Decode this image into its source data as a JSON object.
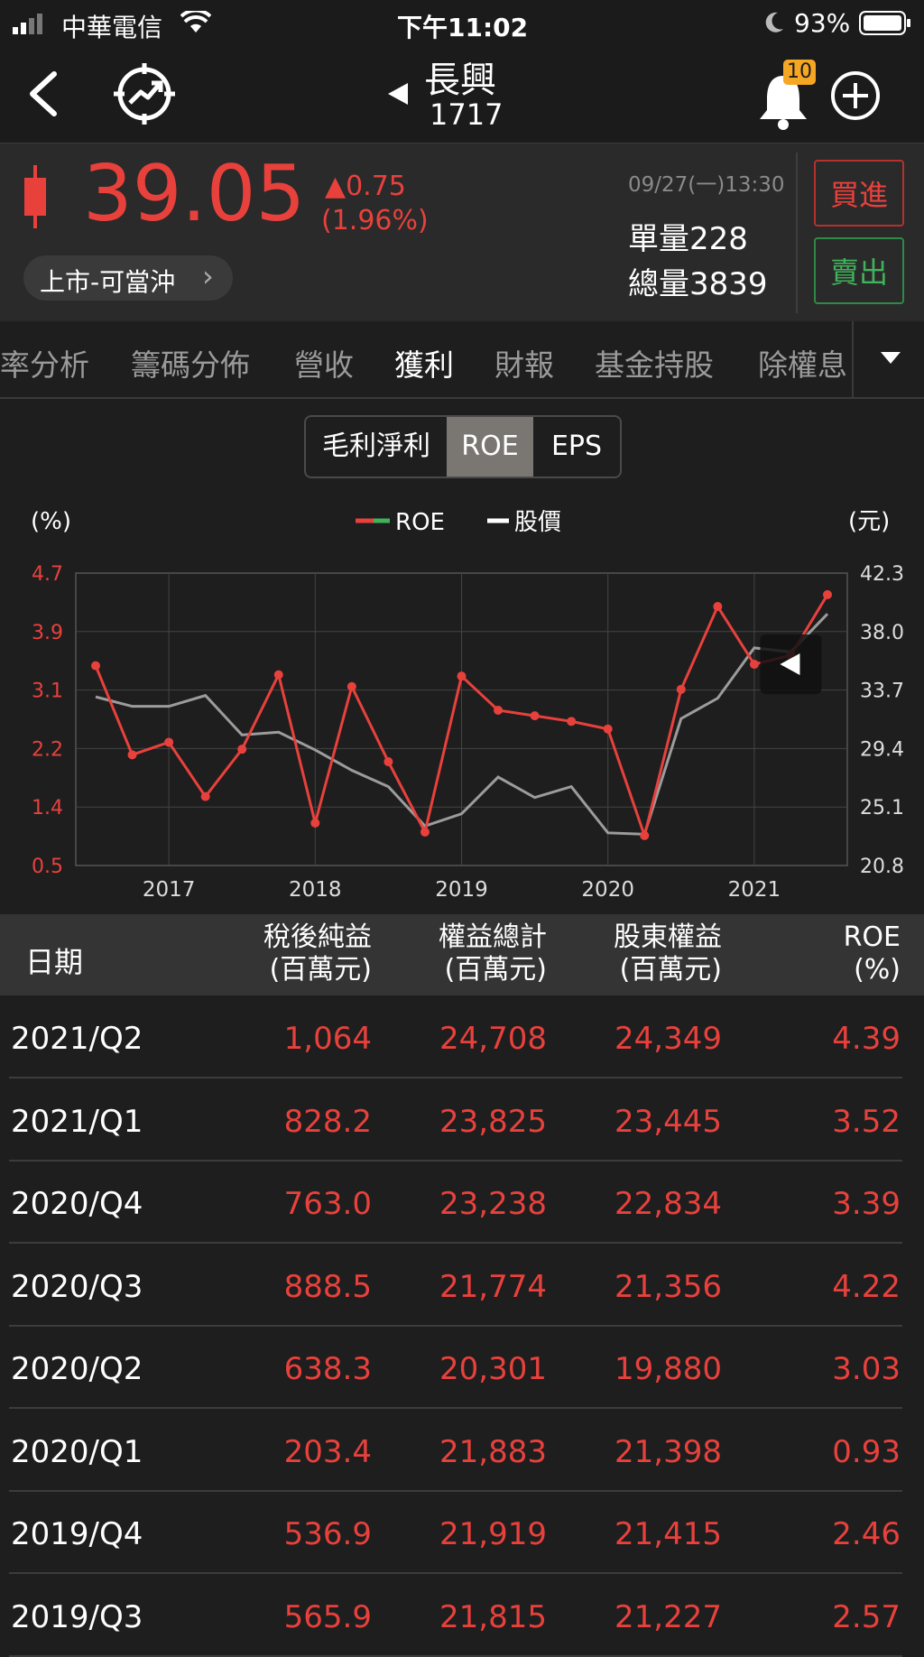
{
  "status": {
    "carrier": "中華電信",
    "time": "下午11:02",
    "battery": "93%"
  },
  "nav": {
    "title": "長興",
    "code": "1717",
    "badge": "10",
    "icons": [
      "back-icon",
      "trend-icon",
      "prev-icon",
      "bell-icon",
      "add-icon"
    ]
  },
  "quote": {
    "price": "39.05",
    "change": "▲0.75",
    "change_pct": "(1.96%)",
    "datetime": "09/27(一)13:30",
    "unit_vol": "單量228",
    "total_vol": "總量3839",
    "market": "上市-可當沖",
    "buy": "買進",
    "sell": "賣出"
  },
  "tabs": [
    "率分析",
    "籌碼分佈",
    "營收",
    "獲利",
    "財報",
    "基金持股",
    "除權息"
  ],
  "segments": [
    "毛利淨利",
    "ROE",
    "EPS"
  ],
  "colors": {
    "accent_red": "#e8413c",
    "accent_green": "#3fb35a",
    "price_line": "#9c9c9c"
  },
  "chart_data": {
    "type": "line",
    "legend": [
      "ROE",
      "股價"
    ],
    "ylabel_left": "(%)",
    "ylabel_right": "(元)",
    "yticks_left": [
      "4.7",
      "3.9",
      "3.1",
      "2.2",
      "1.4",
      "0.5"
    ],
    "yticks_right": [
      "42.3",
      "38.0",
      "33.7",
      "29.4",
      "25.1",
      "20.8"
    ],
    "ylim_left": [
      0.5,
      4.7
    ],
    "ylim_right": [
      20.8,
      42.3
    ],
    "x_ticks": [
      {
        "label": "2017",
        "pos": 2.0
      },
      {
        "label": "2018",
        "pos": 6.0
      },
      {
        "label": "2019",
        "pos": 10.0
      },
      {
        "label": "2020",
        "pos": 14.0
      },
      {
        "label": "2021",
        "pos": 18.0
      }
    ],
    "x": [
      "2016/Q2",
      "2016/Q3",
      "2016/Q4",
      "2017/Q1",
      "2017/Q2",
      "2017/Q3",
      "2017/Q4",
      "2018/Q1",
      "2018/Q2",
      "2018/Q3",
      "2018/Q4",
      "2019/Q1",
      "2019/Q2",
      "2019/Q3",
      "2019/Q4",
      "2020/Q1",
      "2020/Q2",
      "2020/Q3",
      "2020/Q4",
      "2021/Q1",
      "2021/Q2"
    ],
    "series": [
      {
        "name": "ROE",
        "axis": "left",
        "values": [
          3.37,
          2.09,
          2.27,
          1.49,
          2.17,
          3.24,
          1.11,
          3.07,
          1.99,
          0.98,
          3.22,
          2.73,
          2.65,
          2.57,
          2.46,
          0.93,
          3.03,
          4.22,
          3.39,
          3.52,
          4.39
        ]
      },
      {
        "name": "股價",
        "axis": "right",
        "values": [
          33.2,
          32.5,
          32.5,
          33.3,
          30.4,
          30.6,
          29.3,
          27.8,
          26.6,
          23.7,
          24.6,
          27.3,
          25.8,
          26.6,
          23.2,
          23.1,
          31.6,
          33.1,
          36.8,
          36.5,
          39.3
        ]
      }
    ]
  },
  "table": {
    "headers": [
      {
        "l1": "日期",
        "l2": ""
      },
      {
        "l1": "稅後純益",
        "l2": "(百萬元)"
      },
      {
        "l1": "權益總計",
        "l2": "(百萬元)"
      },
      {
        "l1": "股東權益",
        "l2": "(百萬元)"
      },
      {
        "l1": "ROE",
        "l2": "(%)"
      }
    ],
    "rows": [
      [
        "2021/Q2",
        "1,064",
        "24,708",
        "24,349",
        "4.39"
      ],
      [
        "2021/Q1",
        "828.2",
        "23,825",
        "23,445",
        "3.52"
      ],
      [
        "2020/Q4",
        "763.0",
        "23,238",
        "22,834",
        "3.39"
      ],
      [
        "2020/Q3",
        "888.5",
        "21,774",
        "21,356",
        "4.22"
      ],
      [
        "2020/Q2",
        "638.3",
        "20,301",
        "19,880",
        "3.03"
      ],
      [
        "2020/Q1",
        "203.4",
        "21,883",
        "21,398",
        "0.93"
      ],
      [
        "2019/Q4",
        "536.9",
        "21,919",
        "21,415",
        "2.46"
      ],
      [
        "2019/Q3",
        "565.9",
        "21,815",
        "21,227",
        "2.57"
      ]
    ]
  }
}
